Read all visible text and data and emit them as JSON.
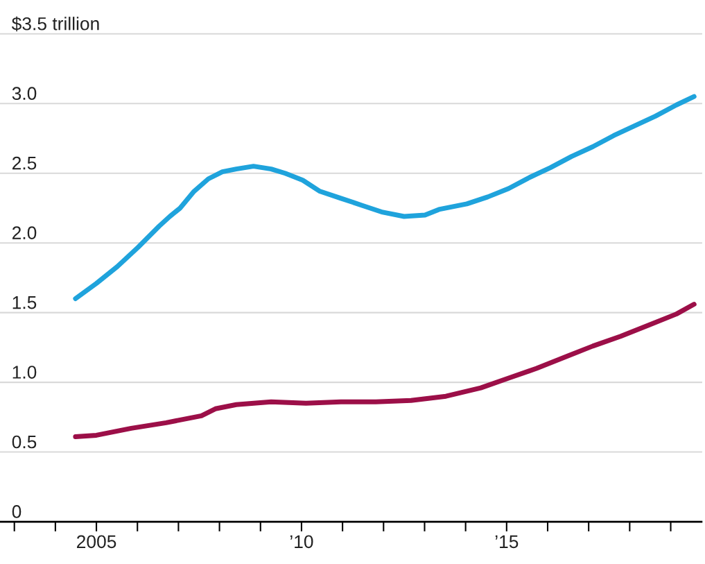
{
  "chart_data": {
    "type": "line",
    "series": [
      {
        "color": "#1fa3dc",
        "x": [
          2004.49,
          2005.0,
          2005.51,
          2006.02,
          2006.53,
          2006.79,
          2007.04,
          2007.38,
          2007.73,
          2008.07,
          2008.41,
          2008.83,
          2009.26,
          2009.6,
          2010.03,
          2010.45,
          2010.96,
          2011.47,
          2011.98,
          2012.5,
          2013.01,
          2013.35,
          2014.03,
          2014.54,
          2015.05,
          2015.56,
          2016.07,
          2016.58,
          2017.1,
          2017.61,
          2018.12,
          2018.63,
          2019.14,
          2019.57
        ],
        "values": [
          1.6,
          1.71,
          1.83,
          1.97,
          2.12,
          2.19,
          2.25,
          2.37,
          2.46,
          2.51,
          2.53,
          2.55,
          2.53,
          2.5,
          2.45,
          2.37,
          2.32,
          2.27,
          2.22,
          2.19,
          2.2,
          2.24,
          2.28,
          2.33,
          2.39,
          2.47,
          2.54,
          2.62,
          2.69,
          2.77,
          2.84,
          2.91,
          2.99,
          3.05
        ]
      },
      {
        "color": "#9c0f48",
        "x": [
          2004.49,
          2005.0,
          2005.85,
          2006.7,
          2007.56,
          2007.9,
          2008.41,
          2009.26,
          2010.11,
          2010.96,
          2011.81,
          2012.67,
          2013.52,
          2014.37,
          2015.05,
          2015.73,
          2016.41,
          2017.1,
          2017.78,
          2018.46,
          2019.14,
          2019.57
        ],
        "values": [
          0.61,
          0.62,
          0.67,
          0.71,
          0.76,
          0.81,
          0.84,
          0.86,
          0.85,
          0.86,
          0.86,
          0.87,
          0.9,
          0.96,
          1.03,
          1.1,
          1.18,
          1.26,
          1.33,
          1.41,
          1.49,
          1.56
        ]
      }
    ],
    "xlim": [
      2002.65,
      2019.75
    ],
    "xticks": [
      {
        "value": 2003,
        "label": null
      },
      {
        "value": 2004,
        "label": null
      },
      {
        "value": 2005,
        "label": "2005"
      },
      {
        "value": 2006,
        "label": null
      },
      {
        "value": 2007,
        "label": null
      },
      {
        "value": 2008,
        "label": null
      },
      {
        "value": 2009,
        "label": null
      },
      {
        "value": 2010,
        "label": "’10"
      },
      {
        "value": 2011,
        "label": null
      },
      {
        "value": 2012,
        "label": null
      },
      {
        "value": 2013,
        "label": null
      },
      {
        "value": 2014,
        "label": null
      },
      {
        "value": 2015,
        "label": "’15"
      },
      {
        "value": 2016,
        "label": null
      },
      {
        "value": 2017,
        "label": null
      },
      {
        "value": 2018,
        "label": null
      },
      {
        "value": 2019,
        "label": null
      }
    ],
    "ylim": [
      0,
      3.5
    ],
    "yticks": [
      0,
      {
        "value": 0.5,
        "label": "0.5"
      },
      {
        "value": 1.0,
        "label": "1.0"
      },
      {
        "value": 1.5,
        "label": "1.5"
      },
      {
        "value": 2.0,
        "label": "2.0"
      },
      {
        "value": 2.5,
        "label": "2.5"
      },
      {
        "value": 3.0,
        "label": "3.0"
      },
      {
        "value": 3.5,
        "label": "$3.5 trillion"
      }
    ],
    "grid": "y",
    "marker": "none",
    "line_style": "solid"
  }
}
